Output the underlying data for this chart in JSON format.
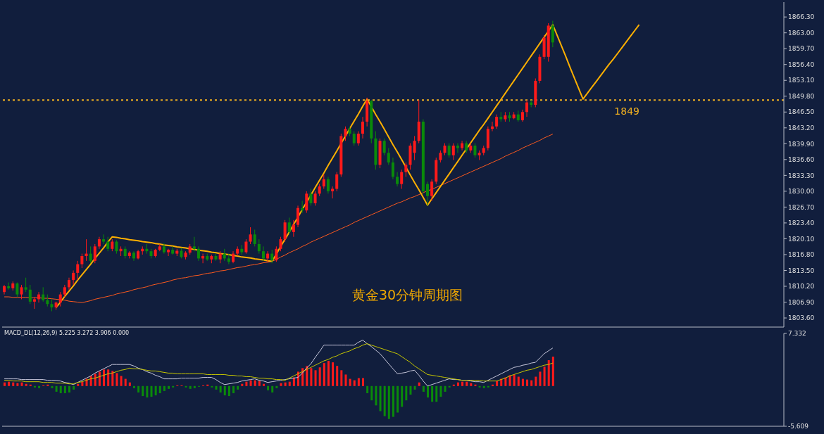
{
  "chart_data": [
    {
      "type": "candlestick",
      "tick_labels": "y",
      "ylim": [
        1801.7,
        1869.4
      ],
      "yticks": [
        {
          "value": 1803.6,
          "label": "1803.60"
        },
        {
          "value": 1806.9,
          "label": "1806.90"
        },
        {
          "value": 1810.2,
          "label": "1810.20"
        },
        {
          "value": 1813.5,
          "label": "1813.50"
        },
        {
          "value": 1816.8,
          "label": "1816.80"
        },
        {
          "value": 1820.1,
          "label": "1820.10"
        },
        {
          "value": 1823.4,
          "label": "1823.40"
        },
        {
          "value": 1826.7,
          "label": "1826.70"
        },
        {
          "value": 1830,
          "label": "1830.00"
        },
        {
          "value": 1833.3,
          "label": "1833.30"
        },
        {
          "value": 1836.6,
          "label": "1836.60"
        },
        {
          "value": 1839.9,
          "label": "1839.90"
        },
        {
          "value": 1843.2,
          "label": "1843.20"
        },
        {
          "value": 1846.5,
          "label": "1846.50"
        },
        {
          "value": 1849.8,
          "label": "1849.80"
        },
        {
          "value": 1853.1,
          "label": "1853.10"
        },
        {
          "value": 1856.4,
          "label": "1856.40"
        },
        {
          "value": 1859.7,
          "label": "1859.70"
        },
        {
          "value": 1863,
          "label": "1863.00"
        },
        {
          "value": 1866.3,
          "label": "1866.30"
        }
      ],
      "colors": [
        "#ff1a1a",
        "#0a8a0a",
        "#ff1a1a",
        "#0a8a0a",
        "#ff1a1a",
        "#0a8a0a",
        "#0a8a0a",
        "#ff1a1a",
        "#ff1a1a",
        "#0a8a0a",
        "#0a8a0a",
        "#0a8a0a",
        "#ff1a1a",
        "#ff1a1a",
        "#ff1a1a",
        "#ff1a1a",
        "#ff1a1a",
        "#ff1a1a",
        "#ff1a1a",
        "#ff1a1a",
        "#0a8a0a",
        "#ff1a1a",
        "#ff1a1a",
        "#0a8a0a",
        "#0a8a0a",
        "#ff1a1a",
        "#0a8a0a",
        "#ff1a1a",
        "#0a8a0a",
        "#ff1a1a",
        "#0a8a0a",
        "#ff1a1a",
        "#ff1a1a",
        "#0a8a0a",
        "#0a8a0a",
        "#ff1a1a",
        "#ff1a1a",
        "#0a8a0a",
        "#ff1a1a",
        "#0a8a0a",
        "#ff1a1a",
        "#0a8a0a",
        "#ff1a1a",
        "#ff1a1a",
        "#0a8a0a",
        "#0a8a0a",
        "#ff1a1a",
        "#0a8a0a",
        "#ff1a1a",
        "#0a8a0a",
        "#ff1a1a",
        "#0a8a0a",
        "#0a8a0a",
        "#ff1a1a",
        "#ff1a1a",
        "#0a8a0a",
        "#ff1a1a",
        "#ff1a1a",
        "#0a8a0a",
        "#0a8a0a",
        "#0a8a0a",
        "#ff1a1a",
        "#0a8a0a",
        "#ff1a1a",
        "#ff1a1a",
        "#ff1a1a",
        "#0a8a0a",
        "#ff1a1a",
        "#ff1a1a",
        "#0a8a0a",
        "#ff1a1a",
        "#0a8a0a",
        "#ff1a1a",
        "#ff1a1a",
        "#ff1a1a",
        "#0a8a0a",
        "#ff1a1a",
        "#ff1a1a",
        "#ff1a1a",
        "#ff1a1a",
        "#0a8a0a",
        "#0a8a0a",
        "#ff1a1a",
        "#ff1a1a",
        "#ff1a1a",
        "#0a8a0a",
        "#0a8a0a",
        "#ff1a1a",
        "#0a8a0a",
        "#0a8a0a",
        "#0a8a0a",
        "#0a8a0a",
        "#ff1a1a",
        "#ff1a1a",
        "#ff1a1a",
        "#ff1a1a",
        "#ff1a1a",
        "#0a8a0a",
        "#0a8a0a",
        "#ff1a1a",
        "#ff1a1a",
        "#ff1a1a",
        "#ff1a1a",
        "#0a8a0a",
        "#ff1a1a",
        "#0a8a0a",
        "#ff1a1a",
        "#0a8a0a",
        "#ff1a1a",
        "#0a8a0a",
        "#ff1a1a",
        "#ff1a1a",
        "#ff1a1a",
        "#ff1a1a",
        "#ff1a1a",
        "#0a8a0a",
        "#ff1a1a",
        "#0a8a0a",
        "#ff1a1a",
        "#0a8a0a",
        "#ff1a1a",
        "#ff1a1a",
        "#0a8a0a",
        "#ff1a1a",
        "#ff1a1a",
        "#ff1a1a",
        "#ff1a1a",
        "#0a8a0a",
        null,
        null,
        null,
        null,
        null,
        null,
        null,
        null,
        null,
        null,
        null,
        null,
        null,
        null,
        null,
        null,
        null,
        null,
        null,
        null
      ],
      "categories": [
        null,
        null,
        null,
        null,
        null,
        null,
        null,
        null,
        null,
        null,
        null,
        null,
        null,
        null,
        null,
        null,
        null,
        null,
        null,
        null,
        null,
        null,
        null,
        null,
        null,
        null,
        null,
        null,
        null,
        null,
        null,
        null,
        null,
        null,
        null,
        null,
        null,
        null,
        null,
        null,
        null,
        null,
        null,
        null,
        null,
        null,
        null,
        null,
        null,
        null,
        null,
        null,
        null,
        null,
        null,
        null,
        null,
        null,
        null,
        null,
        null,
        null,
        null,
        null,
        null,
        null,
        null,
        null,
        null,
        null,
        null,
        null,
        null,
        null,
        null,
        null,
        null,
        null,
        null,
        null,
        null,
        null,
        null,
        null,
        null,
        null,
        null,
        null,
        null,
        null,
        null,
        null,
        null,
        null,
        null,
        null,
        null,
        null,
        null,
        null,
        null,
        null,
        null,
        null,
        null,
        null,
        null,
        null,
        null,
        null,
        null,
        null,
        null,
        null,
        null,
        null,
        null,
        null,
        null,
        null,
        null,
        null,
        null,
        null,
        null,
        null,
        null,
        null,
        null,
        null,
        null,
        null,
        null,
        null,
        null,
        null,
        null,
        null,
        null,
        null,
        null,
        null,
        null,
        null,
        null,
        null,
        null,
        null
      ],
      "ohlc": [
        [
          1809.0,
          1810.5,
          1808.5,
          1810.2
        ],
        [
          1810.2,
          1811.0,
          1809.5,
          1809.8
        ],
        [
          1809.8,
          1811.2,
          1809.3,
          1810.8
        ],
        [
          1810.8,
          1811.0,
          1808.0,
          1808.5
        ],
        [
          1808.5,
          1810.5,
          1807.5,
          1810.0
        ],
        [
          1810.0,
          1812.0,
          1809.0,
          1809.5
        ],
        [
          1809.5,
          1810.5,
          1806.5,
          1807.0
        ],
        [
          1807.0,
          1808.0,
          1805.5,
          1807.5
        ],
        [
          1807.5,
          1809.0,
          1806.8,
          1808.5
        ],
        [
          1808.5,
          1810.0,
          1807.0,
          1807.3
        ],
        [
          1807.3,
          1808.5,
          1806.0,
          1806.5
        ],
        [
          1806.5,
          1807.5,
          1805.0,
          1805.8
        ],
        [
          1805.8,
          1807.0,
          1805.3,
          1806.8
        ],
        [
          1806.8,
          1809.0,
          1806.0,
          1808.5
        ],
        [
          1808.5,
          1810.5,
          1808.0,
          1810.0
        ],
        [
          1810.0,
          1812.0,
          1809.5,
          1811.5
        ],
        [
          1811.5,
          1813.5,
          1810.5,
          1813.0
        ],
        [
          1813.0,
          1815.5,
          1811.5,
          1814.8
        ],
        [
          1814.8,
          1817.0,
          1814.0,
          1816.5
        ],
        [
          1816.5,
          1820.0,
          1815.5,
          1817.0
        ],
        [
          1817.0,
          1818.5,
          1815.0,
          1815.5
        ],
        [
          1815.5,
          1819.0,
          1815.0,
          1818.5
        ],
        [
          1818.5,
          1820.5,
          1818.0,
          1820.0
        ],
        [
          1820.0,
          1821.0,
          1819.0,
          1819.5
        ],
        [
          1819.5,
          1820.5,
          1817.5,
          1818.0
        ],
        [
          1818.0,
          1820.0,
          1817.5,
          1819.5
        ],
        [
          1819.5,
          1819.8,
          1817.0,
          1817.5
        ],
        [
          1817.5,
          1818.5,
          1816.5,
          1818.0
        ],
        [
          1818.0,
          1818.5,
          1816.0,
          1816.5
        ],
        [
          1816.5,
          1817.5,
          1816.0,
          1817.2
        ],
        [
          1817.2,
          1817.5,
          1815.5,
          1816.0
        ],
        [
          1816.0,
          1817.8,
          1815.8,
          1817.5
        ],
        [
          1817.5,
          1818.5,
          1816.8,
          1818.0
        ],
        [
          1818.0,
          1819.0,
          1817.0,
          1817.5
        ],
        [
          1817.5,
          1818.0,
          1816.0,
          1816.5
        ],
        [
          1816.5,
          1818.0,
          1816.2,
          1817.8
        ],
        [
          1817.8,
          1819.0,
          1817.5,
          1818.5
        ],
        [
          1818.5,
          1819.2,
          1817.0,
          1817.3
        ],
        [
          1817.3,
          1818.0,
          1816.5,
          1817.8
        ],
        [
          1817.8,
          1818.5,
          1816.8,
          1817.0
        ],
        [
          1817.0,
          1818.0,
          1816.5,
          1817.6
        ],
        [
          1817.6,
          1818.2,
          1816.0,
          1816.3
        ],
        [
          1816.3,
          1817.5,
          1815.8,
          1817.2
        ],
        [
          1817.2,
          1819.0,
          1816.8,
          1818.5
        ],
        [
          1818.5,
          1820.5,
          1817.5,
          1818.0
        ],
        [
          1818.0,
          1818.5,
          1815.5,
          1816.0
        ],
        [
          1816.0,
          1817.0,
          1815.0,
          1816.5
        ],
        [
          1816.5,
          1817.0,
          1815.5,
          1815.8
        ],
        [
          1815.8,
          1816.8,
          1815.0,
          1816.5
        ],
        [
          1816.5,
          1817.0,
          1815.5,
          1815.8
        ],
        [
          1815.8,
          1817.5,
          1815.0,
          1817.0
        ],
        [
          1817.0,
          1818.0,
          1815.5,
          1816.0
        ],
        [
          1816.0,
          1817.0,
          1814.8,
          1815.3
        ],
        [
          1815.3,
          1817.5,
          1815.0,
          1817.0
        ],
        [
          1817.0,
          1818.5,
          1816.5,
          1818.0
        ],
        [
          1818.0,
          1818.8,
          1816.8,
          1817.3
        ],
        [
          1817.3,
          1820.0,
          1817.0,
          1819.5
        ],
        [
          1819.5,
          1822.5,
          1819.0,
          1821.0
        ],
        [
          1821.0,
          1822.0,
          1818.5,
          1819.0
        ],
        [
          1819.0,
          1820.0,
          1817.0,
          1817.5
        ],
        [
          1817.5,
          1818.5,
          1815.5,
          1816.0
        ],
        [
          1816.0,
          1817.5,
          1815.2,
          1817.0
        ],
        [
          1817.0,
          1817.8,
          1815.0,
          1815.6
        ],
        [
          1815.6,
          1818.5,
          1815.3,
          1818.0
        ],
        [
          1818.0,
          1820.5,
          1817.5,
          1820.0
        ],
        [
          1820.0,
          1824.0,
          1819.5,
          1823.5
        ],
        [
          1823.5,
          1824.5,
          1821.0,
          1821.5
        ],
        [
          1821.5,
          1824.0,
          1820.5,
          1823.0
        ],
        [
          1823.0,
          1827.0,
          1822.5,
          1826.5
        ],
        [
          1826.5,
          1828.0,
          1825.5,
          1826.0
        ],
        [
          1826.0,
          1830.0,
          1825.5,
          1829.5
        ],
        [
          1829.5,
          1830.5,
          1827.0,
          1827.5
        ],
        [
          1827.5,
          1830.0,
          1827.0,
          1829.5
        ],
        [
          1829.5,
          1831.5,
          1829.0,
          1831.0
        ],
        [
          1831.0,
          1833.5,
          1830.5,
          1832.5
        ],
        [
          1832.5,
          1833.0,
          1829.5,
          1830.0
        ],
        [
          1830.0,
          1831.0,
          1828.5,
          1830.5
        ],
        [
          1830.5,
          1834.0,
          1830.0,
          1833.5
        ],
        [
          1833.5,
          1842.0,
          1833.0,
          1841.5
        ],
        [
          1841.5,
          1843.5,
          1840.5,
          1843.0
        ],
        [
          1843.0,
          1843.5,
          1841.5,
          1842.0
        ],
        [
          1842.0,
          1842.5,
          1839.5,
          1840.0
        ],
        [
          1840.0,
          1842.5,
          1839.5,
          1842.0
        ],
        [
          1842.0,
          1845.5,
          1841.0,
          1844.5
        ],
        [
          1844.5,
          1849.5,
          1843.5,
          1848.8
        ],
        [
          1848.8,
          1849.0,
          1840.0,
          1841.0
        ],
        [
          1841.0,
          1842.5,
          1834.5,
          1835.5
        ],
        [
          1835.5,
          1841.0,
          1834.8,
          1840.5
        ],
        [
          1840.5,
          1841.0,
          1837.5,
          1838.0
        ],
        [
          1838.0,
          1839.0,
          1835.5,
          1836.0
        ],
        [
          1836.0,
          1837.0,
          1832.5,
          1833.0
        ],
        [
          1833.0,
          1834.0,
          1831.0,
          1831.5
        ],
        [
          1831.5,
          1834.5,
          1830.5,
          1834.0
        ],
        [
          1834.0,
          1836.0,
          1833.0,
          1835.5
        ],
        [
          1835.5,
          1840.0,
          1834.5,
          1839.5
        ],
        [
          1838.0,
          1841.5,
          1836.5,
          1840.5
        ],
        [
          1840.5,
          1849.0,
          1840.0,
          1844.5
        ],
        [
          1844.5,
          1845.0,
          1829.5,
          1830.0
        ],
        [
          1831.5,
          1832.0,
          1827.0,
          1829.0
        ],
        [
          1829.0,
          1832.5,
          1828.0,
          1832.0
        ],
        [
          1832.0,
          1837.0,
          1831.5,
          1836.5
        ],
        [
          1836.5,
          1838.5,
          1836.0,
          1838.0
        ],
        [
          1838.0,
          1840.0,
          1837.5,
          1839.5
        ],
        [
          1839.5,
          1840.0,
          1837.0,
          1837.5
        ],
        [
          1837.5,
          1840.0,
          1836.5,
          1839.5
        ],
        [
          1839.5,
          1840.0,
          1838.0,
          1839.0
        ],
        [
          1839.0,
          1840.5,
          1838.5,
          1840.0
        ],
        [
          1840.0,
          1840.5,
          1838.0,
          1838.5
        ],
        [
          1838.5,
          1840.0,
          1838.0,
          1839.5
        ],
        [
          1839.5,
          1840.0,
          1837.0,
          1837.5
        ],
        [
          1837.5,
          1838.5,
          1836.5,
          1838.0
        ],
        [
          1838.0,
          1839.5,
          1837.5,
          1839.0
        ],
        [
          1839.0,
          1843.5,
          1838.5,
          1843.0
        ],
        [
          1843.0,
          1844.5,
          1842.5,
          1843.5
        ],
        [
          1843.5,
          1846.0,
          1843.0,
          1845.5
        ],
        [
          1845.5,
          1846.5,
          1844.5,
          1845.0
        ],
        [
          1845.0,
          1846.5,
          1844.5,
          1845.8
        ],
        [
          1845.8,
          1846.5,
          1844.5,
          1845.2
        ],
        [
          1845.2,
          1846.5,
          1845.0,
          1846.0
        ],
        [
          1846.0,
          1846.8,
          1844.5,
          1844.8
        ],
        [
          1844.8,
          1847.0,
          1844.5,
          1846.5
        ],
        [
          1846.5,
          1849.0,
          1845.5,
          1848.5
        ],
        [
          1848.5,
          1849.0,
          1847.5,
          1848.0
        ],
        [
          1848.0,
          1853.5,
          1847.5,
          1853.0
        ],
        [
          1853.0,
          1858.5,
          1852.5,
          1858.0
        ],
        [
          1858.0,
          1862.5,
          1857.5,
          1862.0
        ],
        [
          1858.0,
          1865.0,
          1857.0,
          1864.5
        ],
        [
          1864.5,
          1865.5,
          1860.0,
          1861.0
        ],
        null,
        null,
        null,
        null,
        null,
        null,
        null,
        null,
        null,
        null,
        null,
        null,
        null,
        null,
        null,
        null,
        null,
        null,
        null,
        null
      ],
      "series": [
        {
          "type": "line",
          "color": "#ff5a1e",
          "values": [
            1808.0,
            1808.0,
            1807.9,
            1807.9,
            1807.9,
            1807.9,
            1807.8,
            1807.8,
            1807.8,
            1807.7,
            1807.7,
            1807.6,
            1807.5,
            1807.4,
            1807.3,
            1807.1,
            1807.0,
            1806.9,
            1806.8,
            1807.0,
            1807.2,
            1807.5,
            1807.7,
            1807.9,
            1808.1,
            1808.3,
            1808.6,
            1808.8,
            1809.0,
            1809.2,
            1809.5,
            1809.7,
            1809.9,
            1810.1,
            1810.4,
            1810.6,
            1810.8,
            1811.0,
            1811.2,
            1811.5,
            1811.7,
            1811.9,
            1812.0,
            1812.2,
            1812.4,
            1812.5,
            1812.7,
            1812.9,
            1813.0,
            1813.2,
            1813.4,
            1813.5,
            1813.7,
            1813.9,
            1814.1,
            1814.2,
            1814.4,
            1814.6,
            1814.7,
            1814.9,
            1815.1,
            1815.2,
            1815.4,
            1815.8,
            1816.3,
            1816.7,
            1817.2,
            1817.6,
            1818.0,
            1818.5,
            1818.9,
            1819.4,
            1819.8,
            1820.2,
            1820.6,
            1821.0,
            1821.4,
            1821.8,
            1822.2,
            1822.6,
            1823.0,
            1823.5,
            1823.9,
            1824.3,
            1824.7,
            1825.1,
            1825.5,
            1825.9,
            1826.3,
            1826.7,
            1827.1,
            1827.5,
            1827.8,
            1828.2,
            1828.6,
            1828.9,
            1829.3,
            1829.7,
            1830.1,
            1830.4,
            1830.8,
            1831.2,
            1831.6,
            1832.0,
            1832.4,
            1832.8,
            1833.2,
            1833.6,
            1834.0,
            1834.4,
            1834.8,
            1835.2,
            1835.6,
            1836.0,
            1836.4,
            1836.8,
            1837.3,
            1837.7,
            1838.1,
            1838.5,
            1839.0,
            1839.4,
            1839.8,
            1840.2,
            1840.6,
            1841.1,
            1841.5,
            1841.9,
            null,
            null,
            null,
            null,
            null,
            null,
            null,
            null,
            null,
            null,
            null,
            null,
            null,
            null,
            null,
            null,
            null,
            null,
            null,
            null
          ]
        },
        {
          "type": "line",
          "color": "#ffb000",
          "values": [
            null,
            null,
            null,
            null,
            null,
            null,
            null,
            null,
            null,
            null,
            null,
            null,
            1805.8,
            1806.9,
            1808.1,
            1809.2,
            1810.3,
            1811.5,
            1812.6,
            1813.7,
            1814.8,
            1816.0,
            1817.1,
            1818.2,
            1819.4,
            1820.5,
            1820.4,
            1820.2,
            1820.1,
            1819.9,
            1819.8,
            1819.7,
            1819.5,
            1819.4,
            1819.3,
            1819.1,
            1819.0,
            1818.8,
            1818.7,
            1818.6,
            1818.4,
            1818.3,
            1818.2,
            1818.0,
            1817.9,
            1817.7,
            1817.6,
            1817.5,
            1817.3,
            1817.2,
            1817.0,
            1816.9,
            1816.8,
            1816.6,
            1816.5,
            1816.3,
            1816.2,
            1816.1,
            1815.9,
            1815.8,
            1815.7,
            1815.5,
            1815.4,
            1816.9,
            1818.5,
            1820.0,
            1821.5,
            1823.1,
            1824.6,
            1826.2,
            1827.7,
            1829.2,
            1830.8,
            1832.3,
            1833.8,
            1835.4,
            1836.9,
            1838.4,
            1840.0,
            1841.5,
            1843.1,
            1844.6,
            1846.1,
            1847.7,
            1849.2,
            1847.6,
            1846.0,
            1844.5,
            1842.9,
            1841.3,
            1839.7,
            1838.2,
            1836.6,
            1835.0,
            1833.4,
            1831.8,
            1830.3,
            1828.7,
            1827.1,
            1828.4,
            1829.7,
            1831.0,
            1832.3,
            1833.6,
            1834.9,
            1836.2,
            1837.5,
            1838.8,
            1840.1,
            1841.4,
            1842.7,
            1843.9,
            1845.2,
            1846.5,
            1847.8,
            1849.1,
            1850.4,
            1851.7,
            1853.0,
            1854.3,
            1855.6,
            1856.9,
            1858.2,
            1859.5,
            1860.8,
            1862.1,
            1863.4,
            1864.7,
            1862.5,
            1860.3,
            1858.1,
            1855.8,
            1853.6,
            1851.4,
            1849.2,
            1850.4,
            1851.6,
            1852.8,
            1854.0,
            1855.2,
            1856.4,
            1857.5,
            1858.7,
            1859.9,
            1861.1,
            1862.3,
            1863.5,
            1864.7
          ]
        }
      ],
      "ref_lines": [
        {
          "axis": "y",
          "value": 1849,
          "label": "1849",
          "color": "#f0b020",
          "line_style": "dotted"
        }
      ],
      "annotations": [
        "黄金30分钟周期图"
      ]
    },
    {
      "type": "bar",
      "title": "MACD_DL(12,26,9) 5.225 3.272 3.906 0.000",
      "tick_labels": "y",
      "ylim": [
        -5.609,
        7.332
      ],
      "yticks": [
        -5.609,
        7.332
      ],
      "categories": [
        null,
        null,
        null,
        null,
        null,
        null,
        null,
        null,
        null,
        null,
        null,
        null,
        null,
        null,
        null,
        null,
        null,
        null,
        null,
        null,
        null,
        null,
        null,
        null,
        null,
        null,
        null,
        null,
        null,
        null,
        null,
        null,
        null,
        null,
        null,
        null,
        null,
        null,
        null,
        null,
        null,
        null,
        null,
        null,
        null,
        null,
        null,
        null,
        null,
        null,
        null,
        null,
        null,
        null,
        null,
        null,
        null,
        null,
        null,
        null,
        null,
        null,
        null,
        null,
        null,
        null,
        null,
        null,
        null,
        null,
        null,
        null,
        null,
        null,
        null,
        null,
        null,
        null,
        null,
        null,
        null,
        null,
        null,
        null,
        null,
        null,
        null,
        null,
        null,
        null,
        null,
        null,
        null,
        null,
        null,
        null,
        null,
        null,
        null,
        null,
        null,
        null,
        null,
        null,
        null,
        null,
        null,
        null,
        null,
        null,
        null,
        null,
        null,
        null,
        null,
        null,
        null,
        null,
        null,
        null,
        null,
        null,
        null,
        null,
        null,
        null,
        null,
        null
      ],
      "series": [
        {
          "type": "bar",
          "values": [
            0.5,
            0.6,
            0.5,
            0.4,
            0.5,
            0.3,
            0.2,
            -0.2,
            -0.3,
            0.1,
            0.2,
            -0.3,
            -0.8,
            -1.0,
            -1.0,
            -0.9,
            -0.5,
            0.3,
            0.6,
            1.0,
            1.4,
            1.7,
            2.0,
            2.3,
            2.3,
            2.1,
            1.8,
            1.4,
            1.0,
            0.5,
            -0.3,
            -0.9,
            -1.4,
            -1.6,
            -1.5,
            -1.3,
            -1.0,
            -0.7,
            -0.4,
            -0.2,
            0.1,
            0.1,
            -0.2,
            -0.4,
            -0.3,
            -0.1,
            0.1,
            0.2,
            -0.2,
            -0.5,
            -0.9,
            -1.3,
            -1.4,
            -1.0,
            -0.5,
            0.3,
            0.6,
            0.8,
            0.8,
            0.7,
            0.3,
            -0.6,
            -0.9,
            -0.3,
            0.4,
            0.5,
            0.6,
            1.2,
            2.0,
            2.5,
            2.8,
            2.5,
            2.2,
            2.6,
            3.2,
            3.5,
            3.3,
            2.8,
            2.2,
            1.6,
            1.0,
            0.8,
            1.1,
            1.1,
            -1.0,
            -2.0,
            -2.7,
            -3.5,
            -4.2,
            -4.6,
            -4.3,
            -3.7,
            -2.9,
            -2.0,
            -1.2,
            -0.5,
            0.5,
            -0.8,
            -1.6,
            -2.2,
            -2.2,
            -1.5,
            -0.8,
            -0.2,
            0.2,
            0.5,
            0.6,
            0.6,
            0.4,
            0.2,
            -0.2,
            -0.3,
            -0.2,
            0.2,
            0.7,
            1.0,
            1.2,
            1.5,
            1.6,
            1.3,
            1.0,
            0.9,
            0.8,
            1.3,
            2.0,
            2.7,
            3.6,
            4.1
          ],
          "colors": [
            "#ff1a1a",
            "#ff1a1a",
            "#ff1a1a",
            "#ff1a1a",
            "#ff1a1a",
            "#ff1a1a",
            "#ff1a1a",
            "#0a8a0a",
            "#0a8a0a",
            "#ff1a1a",
            "#ff1a1a",
            "#0a8a0a",
            "#0a8a0a",
            "#0a8a0a",
            "#0a8a0a",
            "#0a8a0a",
            "#0a8a0a",
            "#ff1a1a",
            "#ff1a1a",
            "#ff1a1a",
            "#ff1a1a",
            "#ff1a1a",
            "#ff1a1a",
            "#ff1a1a",
            "#ff1a1a",
            "#ff1a1a",
            "#ff1a1a",
            "#ff1a1a",
            "#ff1a1a",
            "#ff1a1a",
            "#0a8a0a",
            "#0a8a0a",
            "#0a8a0a",
            "#0a8a0a",
            "#0a8a0a",
            "#0a8a0a",
            "#0a8a0a",
            "#0a8a0a",
            "#0a8a0a",
            "#0a8a0a",
            "#ff1a1a",
            "#ff1a1a",
            "#0a8a0a",
            "#0a8a0a",
            "#0a8a0a",
            "#0a8a0a",
            "#ff1a1a",
            "#ff1a1a",
            "#0a8a0a",
            "#0a8a0a",
            "#0a8a0a",
            "#0a8a0a",
            "#0a8a0a",
            "#0a8a0a",
            "#0a8a0a",
            "#ff1a1a",
            "#ff1a1a",
            "#ff1a1a",
            "#ff1a1a",
            "#ff1a1a",
            "#ff1a1a",
            "#0a8a0a",
            "#0a8a0a",
            "#0a8a0a",
            "#ff1a1a",
            "#ff1a1a",
            "#ff1a1a",
            "#ff1a1a",
            "#ff1a1a",
            "#ff1a1a",
            "#ff1a1a",
            "#ff1a1a",
            "#ff1a1a",
            "#ff1a1a",
            "#ff1a1a",
            "#ff1a1a",
            "#ff1a1a",
            "#ff1a1a",
            "#ff1a1a",
            "#ff1a1a",
            "#ff1a1a",
            "#ff1a1a",
            "#ff1a1a",
            "#ff1a1a",
            "#0a8a0a",
            "#0a8a0a",
            "#0a8a0a",
            "#0a8a0a",
            "#0a8a0a",
            "#0a8a0a",
            "#0a8a0a",
            "#0a8a0a",
            "#0a8a0a",
            "#0a8a0a",
            "#0a8a0a",
            "#0a8a0a",
            "#ff1a1a",
            "#0a8a0a",
            "#0a8a0a",
            "#0a8a0a",
            "#0a8a0a",
            "#0a8a0a",
            "#0a8a0a",
            "#0a8a0a",
            "#ff1a1a",
            "#ff1a1a",
            "#ff1a1a",
            "#ff1a1a",
            "#ff1a1a",
            "#ff1a1a",
            "#0a8a0a",
            "#0a8a0a",
            "#0a8a0a",
            "#ff1a1a",
            "#ff1a1a",
            "#ff1a1a",
            "#ff1a1a",
            "#ff1a1a",
            "#ff1a1a",
            "#ff1a1a",
            "#ff1a1a",
            "#ff1a1a",
            "#ff1a1a",
            "#ff1a1a",
            "#ff1a1a",
            "#ff1a1a",
            "#ff1a1a",
            "#ff1a1a"
          ]
        },
        {
          "type": "line",
          "color": "#c8c8dc",
          "values": [
            1.0,
            1.0,
            1.0,
            1.0,
            0.9,
            0.9,
            0.9,
            0.9,
            0.9,
            0.9,
            0.8,
            0.8,
            0.8,
            0.7,
            0.5,
            0.4,
            0.2,
            0.5,
            0.8,
            1.1,
            1.4,
            1.8,
            2.1,
            2.4,
            2.7,
            3.0,
            3.0,
            3.0,
            3.0,
            3.0,
            2.8,
            2.5,
            2.3,
            2.0,
            1.8,
            1.5,
            1.3,
            1.0,
            1.0,
            1.0,
            1.0,
            1.1,
            1.1,
            1.1,
            1.1,
            1.1,
            1.2,
            1.2,
            1.2,
            0.9,
            0.5,
            0.2,
            0.3,
            0.4,
            0.5,
            0.7,
            0.8,
            0.9,
            1.0,
            0.8,
            0.7,
            0.5,
            0.6,
            0.7,
            0.8,
            0.9,
            1.0,
            1.1,
            1.2,
            1.8,
            2.5,
            3.1,
            4.0,
            4.8,
            5.7,
            5.7,
            5.7,
            5.7,
            5.7,
            5.7,
            5.7,
            5.7,
            6.1,
            6.4,
            5.9,
            5.5,
            5.0,
            4.5,
            3.8,
            3.1,
            2.4,
            1.7,
            1.8,
            1.9,
            2.1,
            2.2,
            1.5,
            0.7,
            0.0,
            0.2,
            0.4,
            0.6,
            0.8,
            1.0,
            0.9,
            0.9,
            0.8,
            0.8,
            0.7,
            0.6,
            0.6,
            0.5,
            0.8,
            1.1,
            1.4,
            1.7,
            2.0,
            2.3,
            2.6,
            2.7,
            2.9,
            3.0,
            3.2,
            3.3,
            3.9,
            4.5,
            4.9,
            5.3
          ]
        },
        {
          "type": "line",
          "color": "#c8c800",
          "values": [
            0.8,
            0.8,
            0.7,
            0.7,
            0.7,
            0.6,
            0.6,
            0.6,
            0.6,
            0.5,
            0.5,
            0.5,
            0.4,
            0.4,
            0.4,
            0.3,
            0.3,
            0.5,
            0.6,
            0.8,
            1.0,
            1.1,
            1.3,
            1.5,
            1.7,
            1.8,
            2.0,
            2.2,
            2.3,
            2.5,
            2.4,
            2.4,
            2.3,
            2.2,
            2.1,
            2.1,
            2.0,
            1.9,
            1.8,
            1.8,
            1.7,
            1.7,
            1.7,
            1.7,
            1.7,
            1.7,
            1.7,
            1.6,
            1.6,
            1.6,
            1.6,
            1.6,
            1.5,
            1.5,
            1.4,
            1.4,
            1.3,
            1.3,
            1.2,
            1.1,
            1.1,
            1.0,
            1.0,
            0.9,
            0.9,
            0.8,
            1.1,
            1.4,
            1.7,
            2.0,
            2.3,
            2.6,
            2.9,
            3.2,
            3.5,
            3.7,
            4.0,
            4.2,
            4.5,
            4.7,
            4.9,
            5.2,
            5.4,
            5.7,
            5.9,
            5.7,
            5.5,
            5.3,
            5.1,
            4.9,
            4.7,
            4.5,
            4.1,
            3.7,
            3.3,
            2.8,
            2.4,
            2.0,
            1.6,
            1.5,
            1.4,
            1.3,
            1.2,
            1.1,
            1.0,
            0.9,
            0.8,
            0.8,
            0.8,
            0.8,
            0.8,
            0.7,
            0.7,
            0.7,
            0.7,
            0.9,
            1.1,
            1.4,
            1.6,
            1.8,
            2.0,
            2.2,
            2.3,
            2.5,
            2.7,
            2.9,
            3.0,
            3.2
          ]
        }
      ]
    }
  ]
}
